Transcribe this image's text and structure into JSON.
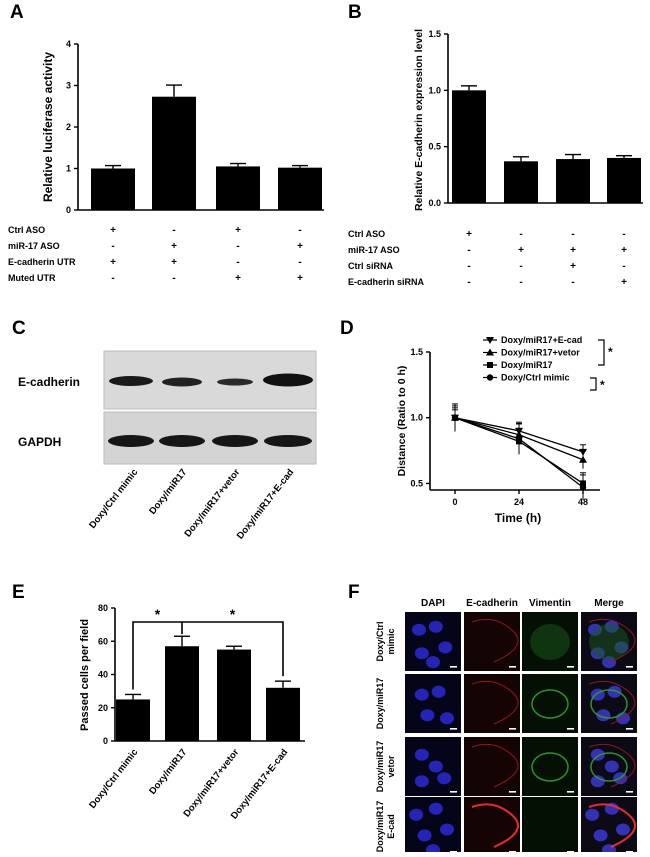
{
  "panels": {
    "A": {
      "label": "A",
      "chart_data": {
        "type": "bar",
        "ylabel": "Relative luciferase activity",
        "ylim": [
          0,
          4
        ],
        "yticks": [
          0,
          1,
          2,
          3,
          4
        ],
        "values": [
          1.0,
          2.73,
          1.05,
          1.02
        ],
        "errors": [
          0.07,
          0.28,
          0.07,
          0.05
        ],
        "treatment_rows": [
          {
            "label": "Ctrl ASO",
            "signs": [
              "+",
              "-",
              "+",
              "-"
            ]
          },
          {
            "label": "miR-17 ASO",
            "signs": [
              "-",
              "+",
              "-",
              "+"
            ]
          },
          {
            "label": "E-cadherin UTR",
            "signs": [
              "+",
              "+",
              "-",
              "-"
            ]
          },
          {
            "label": "Muted  UTR",
            "signs": [
              "-",
              "-",
              "+",
              "+"
            ]
          }
        ]
      }
    },
    "B": {
      "label": "B",
      "chart_data": {
        "type": "bar",
        "ylabel": "Relative E-cadherin expression level",
        "ylim": [
          0,
          1.5
        ],
        "yticks": [
          "0.0",
          "0.5",
          "1.0",
          "1.5"
        ],
        "values": [
          1.0,
          0.37,
          0.39,
          0.4
        ],
        "errors": [
          0.04,
          0.04,
          0.04,
          0.02
        ],
        "treatment_rows": [
          {
            "label": "Ctrl ASO",
            "signs": [
              "+",
              "-",
              "-",
              "-"
            ]
          },
          {
            "label": "miR-17 ASO",
            "signs": [
              "-",
              "+",
              "+",
              "+"
            ]
          },
          {
            "label": "Ctrl siRNA",
            "signs": [
              "-",
              "-",
              "+",
              "-"
            ]
          },
          {
            "label": "E-cadherin siRNA",
            "signs": [
              "-",
              "-",
              "-",
              "+"
            ]
          }
        ]
      }
    },
    "C": {
      "label": "C",
      "blot_labels": [
        "E-cadherin",
        "GAPDH"
      ],
      "lanes": [
        "Doxy/Ctrl mimic",
        "Doxy/miR17",
        "Doxy/miR17+vetor",
        "Doxy/miR17+E-cad"
      ]
    },
    "D": {
      "label": "D",
      "chart_data": {
        "type": "line",
        "xlabel": "Time (h)",
        "ylabel": "Distance (Ratio to 0 h)",
        "xticks": [
          "0",
          "24",
          "48"
        ],
        "x": [
          0,
          24,
          48
        ],
        "ylim": [
          0.45,
          1.5
        ],
        "yticks": [
          "0.5",
          "1.0",
          "1.5"
        ],
        "series": [
          {
            "name": "Doxy/miR17+E-cad",
            "marker": "tri-down",
            "values": [
              1.0,
              0.9,
              0.74
            ]
          },
          {
            "name": "Doxy/miR17+vetor",
            "marker": "tri-up",
            "values": [
              1.0,
              0.87,
              0.68
            ]
          },
          {
            "name": "Doxy/miR17",
            "marker": "square",
            "values": [
              1.0,
              0.82,
              0.5
            ]
          },
          {
            "name": "Doxy/Ctrl mimic",
            "marker": "circle",
            "values": [
              1.0,
              0.84,
              0.47
            ]
          }
        ],
        "significance": [
          "*",
          "*"
        ]
      }
    },
    "E": {
      "label": "E",
      "chart_data": {
        "type": "bar",
        "ylabel": "Passed cells per field",
        "ylim": [
          0,
          80
        ],
        "yticks": [
          0,
          20,
          40,
          60,
          80
        ],
        "categories": [
          "Doxy/Ctrl mimic",
          "Doxy/miR17",
          "Doxy/miR17+vetor",
          "Doxy/miR17+E-cad"
        ],
        "values": [
          25,
          57,
          55,
          32
        ],
        "errors": [
          3,
          6,
          2,
          4
        ],
        "significance": [
          "*",
          "*"
        ]
      }
    },
    "F": {
      "label": "F",
      "columns": [
        "DAPI",
        "E-cadherin",
        "Vimentin",
        "Merge"
      ],
      "rows": [
        [
          "Doxy/Ctrl",
          "mimic"
        ],
        [
          "Doxy/miR17",
          ""
        ],
        [
          "Doxy/miR17",
          "vetor"
        ],
        [
          "Doxy/miR17",
          "E-cad"
        ]
      ]
    }
  }
}
